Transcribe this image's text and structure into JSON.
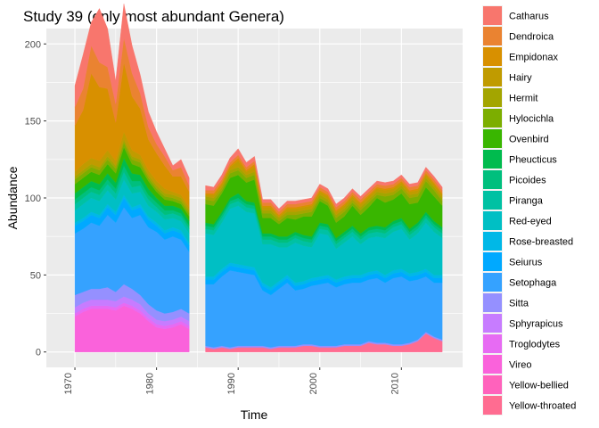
{
  "chart_data": {
    "type": "area",
    "stacked": true,
    "title": "Study 39 (only most abundant Genera)",
    "xlabel": "Time",
    "ylabel": "Abundance",
    "xlim": [
      1966.5,
      2017.5
    ],
    "ylim": [
      -10,
      210
    ],
    "x_ticks": [
      1970,
      1980,
      1990,
      2000,
      2010
    ],
    "y_ticks": [
      0,
      50,
      100,
      150,
      200
    ],
    "x_tick_labels": [
      "1970",
      "1980",
      "1990",
      "2000",
      "2010"
    ],
    "y_tick_labels": [
      "0",
      "50",
      "100",
      "150",
      "200"
    ],
    "grid": true,
    "legend_position": "right",
    "segments": [
      {
        "years": [
          1970,
          1971,
          1972,
          1973,
          1974,
          1975,
          1976,
          1977,
          1978,
          1979,
          1980,
          1981,
          1982,
          1983,
          1984
        ]
      },
      {
        "years": [
          1986,
          1987,
          1988,
          1989,
          1990,
          1991,
          1992,
          1993,
          1994,
          1995,
          1996,
          1997,
          1998,
          1999,
          2000,
          2001,
          2002,
          2003,
          2004,
          2005,
          2006,
          2007,
          2008,
          2009,
          2010,
          2011,
          2012,
          2013,
          2014,
          2015
        ]
      }
    ],
    "years": [
      1970,
      1971,
      1972,
      1973,
      1974,
      1975,
      1976,
      1977,
      1978,
      1979,
      1980,
      1981,
      1982,
      1983,
      1984,
      1986,
      1987,
      1988,
      1989,
      1990,
      1991,
      1992,
      1993,
      1994,
      1995,
      1996,
      1997,
      1998,
      1999,
      2000,
      2001,
      2002,
      2003,
      2004,
      2005,
      2006,
      2007,
      2008,
      2009,
      2010,
      2011,
      2012,
      2013,
      2014,
      2015
    ],
    "series": [
      {
        "name": "Catharus",
        "color": "#F8766D",
        "values": [
          14,
          22,
          15,
          35,
          25,
          15,
          22,
          18,
          12,
          10,
          8,
          5,
          3,
          5,
          5,
          3,
          2,
          3,
          3,
          4,
          3,
          3,
          2,
          2,
          2,
          2,
          2,
          2,
          2,
          2,
          2,
          2,
          2,
          2,
          2,
          2,
          2,
          2,
          2,
          2,
          2,
          2,
          2,
          2,
          2
        ]
      },
      {
        "name": "Dendroica",
        "color": "#EA8331",
        "values": [
          12,
          14,
          18,
          16,
          14,
          12,
          16,
          15,
          10,
          8,
          6,
          6,
          4,
          6,
          4,
          2,
          2,
          2,
          2,
          2,
          2,
          2,
          2,
          2,
          2,
          2,
          2,
          2,
          2,
          2,
          2,
          2,
          2,
          2,
          2,
          2,
          2,
          2,
          2,
          2,
          2,
          2,
          2,
          2,
          2
        ]
      },
      {
        "name": "Empidonax",
        "color": "#D89000",
        "values": [
          30,
          35,
          55,
          48,
          40,
          25,
          45,
          35,
          30,
          20,
          18,
          15,
          10,
          12,
          10,
          1,
          1,
          1,
          1,
          2,
          1,
          2,
          1,
          1,
          1,
          1,
          1,
          1,
          1,
          1,
          1,
          1,
          1,
          1,
          1,
          1,
          1,
          1,
          1,
          1,
          1,
          1,
          1,
          1,
          1
        ]
      },
      {
        "name": "Hairy",
        "color": "#C09B00",
        "values": [
          3,
          4,
          4,
          4,
          4,
          3,
          5,
          4,
          3,
          3,
          3,
          3,
          2,
          2,
          2,
          1,
          2,
          2,
          2,
          4,
          2,
          3,
          2,
          2,
          1,
          2,
          2,
          2,
          2,
          2,
          2,
          2,
          2,
          2,
          2,
          2,
          2,
          2,
          2,
          2,
          2,
          2,
          2,
          2,
          2
        ]
      },
      {
        "name": "Hermit",
        "color": "#A3A500",
        "values": [
          2,
          2,
          2,
          2,
          2,
          2,
          2,
          2,
          2,
          2,
          2,
          2,
          2,
          2,
          2,
          2,
          2,
          2,
          2,
          2,
          2,
          2,
          2,
          2,
          2,
          2,
          2,
          2,
          2,
          2,
          2,
          2,
          2,
          2,
          2,
          2,
          2,
          2,
          2,
          2,
          2,
          2,
          2,
          2,
          2
        ]
      },
      {
        "name": "Hylocichla",
        "color": "#7CAE00",
        "values": [
          3,
          3,
          3,
          3,
          3,
          3,
          3,
          3,
          3,
          2,
          2,
          2,
          2,
          2,
          2,
          3,
          3,
          2,
          3,
          3,
          3,
          3,
          3,
          3,
          2,
          2,
          3,
          2,
          3,
          2,
          2,
          3,
          3,
          2,
          3,
          3,
          2,
          4,
          3,
          3,
          4,
          4,
          4,
          4,
          3
        ]
      },
      {
        "name": "Ovenbird",
        "color": "#39B600",
        "values": [
          6,
          6,
          6,
          6,
          6,
          6,
          7,
          6,
          5,
          5,
          4,
          4,
          3,
          3,
          3,
          12,
          12,
          12,
          13,
          12,
          12,
          15,
          10,
          10,
          8,
          12,
          8,
          12,
          13,
          14,
          12,
          10,
          10,
          13,
          12,
          13,
          18,
          16,
          14,
          16,
          16,
          13,
          16,
          16,
          14
        ]
      },
      {
        "name": "Pheucticus",
        "color": "#00BB4E",
        "values": [
          4,
          4,
          4,
          4,
          4,
          4,
          5,
          5,
          4,
          4,
          3,
          3,
          3,
          3,
          3,
          2,
          2,
          2,
          2,
          3,
          2,
          2,
          2,
          2,
          2,
          2,
          2,
          2,
          2,
          2,
          2,
          2,
          2,
          2,
          2,
          2,
          2,
          2,
          2,
          2,
          2,
          2,
          2,
          2,
          2
        ]
      },
      {
        "name": "Picoides",
        "color": "#00BF7D",
        "values": [
          3,
          3,
          3,
          3,
          3,
          3,
          4,
          4,
          3,
          3,
          3,
          3,
          2,
          2,
          2,
          2,
          2,
          2,
          2,
          2,
          2,
          2,
          2,
          2,
          2,
          2,
          2,
          2,
          2,
          2,
          2,
          2,
          2,
          2,
          2,
          2,
          2,
          2,
          2,
          2,
          2,
          2,
          2,
          2,
          2
        ]
      },
      {
        "name": "Piranga",
        "color": "#00C1A3",
        "values": [
          4,
          4,
          4,
          4,
          4,
          4,
          5,
          4,
          4,
          4,
          3,
          3,
          3,
          3,
          3,
          3,
          3,
          3,
          3,
          3,
          3,
          3,
          3,
          3,
          3,
          3,
          3,
          3,
          3,
          3,
          3,
          3,
          3,
          3,
          3,
          3,
          3,
          3,
          3,
          3,
          3,
          3,
          3,
          3,
          3
        ]
      },
      {
        "name": "Red-eyed",
        "color": "#00BFC4",
        "values": [
          8,
          9,
          9,
          9,
          9,
          8,
          10,
          9,
          8,
          7,
          7,
          7,
          6,
          6,
          6,
          28,
          27,
          30,
          35,
          38,
          35,
          35,
          25,
          28,
          22,
          18,
          26,
          23,
          20,
          28,
          26,
          20,
          22,
          25,
          20,
          22,
          22,
          24,
          25,
          26,
          22,
          25,
          30,
          28,
          24
        ]
      },
      {
        "name": "Rose-breasted",
        "color": "#00B8E7",
        "values": [
          2,
          2,
          2,
          2,
          2,
          2,
          2,
          2,
          2,
          2,
          2,
          2,
          2,
          2,
          2,
          2,
          2,
          2,
          2,
          2,
          2,
          2,
          2,
          2,
          2,
          2,
          2,
          2,
          2,
          2,
          2,
          2,
          2,
          2,
          2,
          2,
          2,
          2,
          2,
          2,
          2,
          2,
          2,
          2,
          2
        ]
      },
      {
        "name": "Seiurus",
        "color": "#00A9FF",
        "values": [
          5,
          5,
          5,
          5,
          5,
          5,
          6,
          5,
          5,
          5,
          4,
          4,
          4,
          4,
          4,
          3,
          3,
          3,
          3,
          3,
          3,
          3,
          3,
          3,
          3,
          3,
          3,
          3,
          3,
          3,
          3,
          3,
          3,
          3,
          3,
          3,
          3,
          3,
          3,
          3,
          3,
          3,
          3,
          3,
          3
        ]
      },
      {
        "name": "Setophaga",
        "color": "#35A2FF",
        "values": [
          40,
          41,
          43,
          41,
          47,
          45,
          50,
          46,
          52,
          50,
          51,
          48,
          49,
          45,
          40,
          40,
          41,
          45,
          50,
          48,
          47,
          46,
          36,
          34,
          37,
          41,
          36,
          36,
          38,
          40,
          41,
          38,
          39,
          40,
          40,
          40,
          42,
          39,
          43,
          44,
          40,
          39,
          36,
          35,
          37
        ]
      },
      {
        "name": "Sitta",
        "color": "#9590FF",
        "values": [
          8,
          7,
          7,
          7,
          8,
          6,
          8,
          7,
          6,
          6,
          6,
          5,
          5,
          5,
          5,
          1,
          1,
          1,
          1,
          1,
          1,
          1,
          1,
          1,
          1,
          1,
          1,
          1,
          1,
          1,
          1,
          1,
          1,
          1,
          1,
          1,
          1,
          1,
          1,
          1,
          1,
          1,
          1,
          1,
          1
        ]
      },
      {
        "name": "Sphyrapicus",
        "color": "#C77CFF",
        "values": [
          4,
          4,
          4,
          4,
          4,
          4,
          4,
          4,
          4,
          3,
          3,
          3,
          3,
          3,
          3,
          0,
          0,
          0,
          0,
          0,
          0,
          0,
          0,
          0,
          0,
          0,
          0,
          0,
          0,
          0,
          0,
          0,
          0,
          0,
          0,
          0,
          0,
          0,
          0,
          0,
          0,
          0,
          0,
          0,
          0
        ]
      },
      {
        "name": "Troglodytes",
        "color": "#E76BF3",
        "values": [
          2,
          2,
          2,
          2,
          2,
          2,
          2,
          2,
          2,
          2,
          2,
          2,
          2,
          2,
          2,
          0,
          0,
          0,
          0,
          0,
          0,
          0,
          0,
          0,
          0,
          0,
          0,
          0,
          0,
          0,
          0,
          0,
          0,
          0,
          0,
          0,
          0,
          0,
          0,
          0,
          0,
          0,
          0,
          0,
          0
        ]
      },
      {
        "name": "Vireo",
        "color": "#FA62DB",
        "values": [
          23,
          26,
          28,
          28,
          28,
          27,
          30,
          28,
          25,
          20,
          16,
          15,
          16,
          18,
          15,
          0,
          0,
          0,
          0,
          0,
          0,
          0,
          0,
          0,
          0,
          0,
          0,
          0,
          0,
          0,
          0,
          0,
          0,
          0,
          0,
          0,
          0,
          0,
          0,
          0,
          0,
          0,
          0,
          0,
          0
        ]
      },
      {
        "name": "Yellow-bellied",
        "color": "#FF62BC",
        "values": [
          0,
          0,
          0,
          0,
          0,
          0,
          0,
          0,
          0,
          0,
          0,
          0,
          0,
          0,
          0,
          0,
          0,
          0,
          0,
          0,
          0,
          0,
          0,
          0,
          0,
          0,
          0,
          0,
          0,
          0,
          0,
          0,
          0,
          0,
          0,
          0,
          0,
          0,
          0,
          0,
          0,
          0,
          0,
          0,
          0
        ]
      },
      {
        "name": "Yellow-throated",
        "color": "#FF6C91",
        "values": [
          0,
          0,
          0,
          0,
          0,
          0,
          0,
          0,
          0,
          0,
          0,
          0,
          0,
          0,
          0,
          3,
          2,
          3,
          2,
          3,
          3,
          3,
          3,
          2,
          3,
          3,
          3,
          4,
          4,
          3,
          3,
          3,
          4,
          4,
          4,
          6,
          5,
          5,
          4,
          4,
          5,
          7,
          12,
          9,
          7
        ]
      }
    ]
  }
}
